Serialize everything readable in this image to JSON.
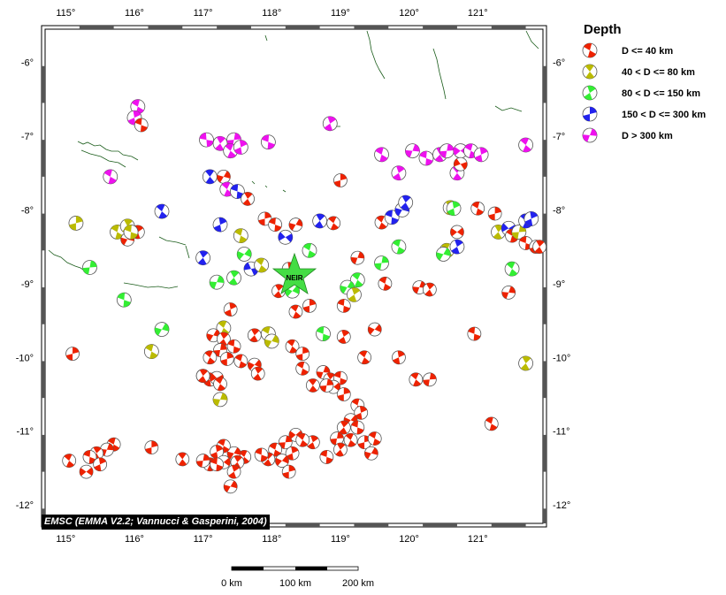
{
  "map": {
    "longitude_labels": [
      "115°",
      "116°",
      "117°",
      "118°",
      "119°",
      "120°",
      "121°"
    ],
    "latitude_labels": [
      "-6°",
      "-7°",
      "-8°",
      "-9°",
      "-10°",
      "-11°",
      "-12°"
    ],
    "station": {
      "label": "NEIR",
      "color": "#44dd44"
    },
    "credit": "EMSC (EMMA V2.2; Vannucci & Gasperini, 2004)"
  },
  "legend": {
    "title": "Depth",
    "items": [
      {
        "label": "D <= 40 km",
        "color": "#ee2200"
      },
      {
        "label": "40 < D <= 80 km",
        "color": "#bbbb00"
      },
      {
        "label": "80 < D <= 150 km",
        "color": "#33ee33"
      },
      {
        "label": "150 < D <= 300 km",
        "color": "#2222ee"
      },
      {
        "label": "D > 300 km",
        "color": "#ee11ee"
      }
    ]
  },
  "scale_bar": {
    "labels": [
      "0 km",
      "100 km",
      "200 km"
    ]
  },
  "events": {
    "depth_classes": [
      "shallow",
      "d40_80",
      "d80_150",
      "d150_300",
      "deep"
    ],
    "colors": {
      "shallow": "#ee2200",
      "d40_80": "#bbbb00",
      "d80_150": "#33ee33",
      "d150_300": "#2222ee",
      "deep": "#ee11ee"
    },
    "list": [
      {
        "lon": 116.05,
        "lat": -6.6,
        "d": "deep",
        "rot": 30
      },
      {
        "lon": 116.0,
        "lat": -6.75,
        "d": "deep",
        "rot": 80
      },
      {
        "lon": 116.1,
        "lat": -6.85,
        "d": "shallow",
        "rot": 20
      },
      {
        "lon": 117.05,
        "lat": -7.05,
        "d": "deep",
        "rot": 10
      },
      {
        "lon": 117.25,
        "lat": -7.1,
        "d": "deep",
        "rot": 60
      },
      {
        "lon": 117.45,
        "lat": -7.05,
        "d": "deep",
        "rot": 100
      },
      {
        "lon": 117.4,
        "lat": -7.2,
        "d": "deep",
        "rot": 40
      },
      {
        "lon": 117.55,
        "lat": -7.15,
        "d": "deep",
        "rot": 80
      },
      {
        "lon": 117.95,
        "lat": -7.08,
        "d": "deep",
        "rot": 20
      },
      {
        "lon": 118.85,
        "lat": -6.83,
        "d": "deep",
        "rot": 70
      },
      {
        "lon": 115.65,
        "lat": -7.55,
        "d": "deep",
        "rot": 30
      },
      {
        "lon": 117.1,
        "lat": -7.55,
        "d": "d150_300",
        "rot": 50
      },
      {
        "lon": 117.3,
        "lat": -7.55,
        "d": "shallow",
        "rot": 120
      },
      {
        "lon": 117.35,
        "lat": -7.72,
        "d": "deep",
        "rot": 40
      },
      {
        "lon": 117.5,
        "lat": -7.75,
        "d": "d150_300",
        "rot": 200
      },
      {
        "lon": 117.65,
        "lat": -7.85,
        "d": "shallow",
        "rot": 60
      },
      {
        "lon": 119.0,
        "lat": -7.6,
        "d": "shallow",
        "rot": 90
      },
      {
        "lon": 119.6,
        "lat": -7.25,
        "d": "deep",
        "rot": 30
      },
      {
        "lon": 119.85,
        "lat": -7.5,
        "d": "deep",
        "rot": 70
      },
      {
        "lon": 120.05,
        "lat": -7.2,
        "d": "deep",
        "rot": 110
      },
      {
        "lon": 120.25,
        "lat": -7.3,
        "d": "deep",
        "rot": 20
      },
      {
        "lon": 120.45,
        "lat": -7.25,
        "d": "deep",
        "rot": 60
      },
      {
        "lon": 120.55,
        "lat": -7.2,
        "d": "deep",
        "rot": 100
      },
      {
        "lon": 120.75,
        "lat": -7.2,
        "d": "deep",
        "rot": 140
      },
      {
        "lon": 120.9,
        "lat": -7.2,
        "d": "deep",
        "rot": 30
      },
      {
        "lon": 121.05,
        "lat": -7.25,
        "d": "deep",
        "rot": 80
      },
      {
        "lon": 120.7,
        "lat": -7.5,
        "d": "deep",
        "rot": 50
      },
      {
        "lon": 120.75,
        "lat": -7.38,
        "d": "shallow",
        "rot": 160
      },
      {
        "lon": 121.7,
        "lat": -7.12,
        "d": "deep",
        "rot": 40
      },
      {
        "lon": 115.15,
        "lat": -8.18,
        "d": "d40_80",
        "rot": 90
      },
      {
        "lon": 115.75,
        "lat": -8.3,
        "d": "d40_80",
        "rot": 30
      },
      {
        "lon": 115.9,
        "lat": -8.22,
        "d": "d40_80",
        "rot": 60
      },
      {
        "lon": 115.9,
        "lat": -8.4,
        "d": "shallow",
        "rot": 120
      },
      {
        "lon": 116.05,
        "lat": -8.3,
        "d": "shallow",
        "rot": 70
      },
      {
        "lon": 115.95,
        "lat": -8.3,
        "d": "d40_80",
        "rot": 200
      },
      {
        "lon": 116.4,
        "lat": -8.02,
        "d": "d150_300",
        "rot": 40
      },
      {
        "lon": 115.35,
        "lat": -8.78,
        "d": "d80_150",
        "rot": 100
      },
      {
        "lon": 115.85,
        "lat": -9.22,
        "d": "d80_150",
        "rot": 20
      },
      {
        "lon": 117.0,
        "lat": -8.65,
        "d": "d150_300",
        "rot": 60
      },
      {
        "lon": 117.2,
        "lat": -8.98,
        "d": "d80_150",
        "rot": 110
      },
      {
        "lon": 117.25,
        "lat": -8.2,
        "d": "d150_300",
        "rot": 80
      },
      {
        "lon": 117.55,
        "lat": -8.35,
        "d": "d40_80",
        "rot": 30
      },
      {
        "lon": 117.6,
        "lat": -8.6,
        "d": "d80_150",
        "rot": 130
      },
      {
        "lon": 117.45,
        "lat": -8.92,
        "d": "d80_150",
        "rot": 60
      },
      {
        "lon": 117.7,
        "lat": -8.8,
        "d": "d150_300",
        "rot": 170
      },
      {
        "lon": 117.85,
        "lat": -8.75,
        "d": "d40_80",
        "rot": 40
      },
      {
        "lon": 117.9,
        "lat": -8.12,
        "d": "shallow",
        "rot": 90
      },
      {
        "lon": 118.05,
        "lat": -8.2,
        "d": "shallow",
        "rot": 20
      },
      {
        "lon": 118.35,
        "lat": -8.2,
        "d": "shallow",
        "rot": 120
      },
      {
        "lon": 118.7,
        "lat": -8.15,
        "d": "d150_300",
        "rot": 60
      },
      {
        "lon": 118.9,
        "lat": -8.18,
        "d": "shallow",
        "rot": 40
      },
      {
        "lon": 118.2,
        "lat": -8.37,
        "d": "d150_300",
        "rot": 150
      },
      {
        "lon": 118.55,
        "lat": -8.55,
        "d": "d80_150",
        "rot": 30
      },
      {
        "lon": 118.25,
        "lat": -8.8,
        "d": "shallow",
        "rot": 80
      },
      {
        "lon": 119.25,
        "lat": -8.65,
        "d": "shallow",
        "rot": 110
      },
      {
        "lon": 119.6,
        "lat": -8.17,
        "d": "shallow",
        "rot": 40
      },
      {
        "lon": 119.75,
        "lat": -8.1,
        "d": "d150_300",
        "rot": 200
      },
      {
        "lon": 119.9,
        "lat": -8.0,
        "d": "d150_300",
        "rot": 120
      },
      {
        "lon": 119.95,
        "lat": -7.9,
        "d": "d150_300",
        "rot": 60
      },
      {
        "lon": 119.85,
        "lat": -8.5,
        "d": "d80_150",
        "rot": 30
      },
      {
        "lon": 119.6,
        "lat": -8.72,
        "d": "d80_150",
        "rot": 100
      },
      {
        "lon": 120.6,
        "lat": -7.97,
        "d": "d40_80",
        "rot": 50
      },
      {
        "lon": 120.65,
        "lat": -7.98,
        "d": "d80_150",
        "rot": 80
      },
      {
        "lon": 120.7,
        "lat": -8.3,
        "d": "shallow",
        "rot": 140
      },
      {
        "lon": 120.55,
        "lat": -8.55,
        "d": "d40_80",
        "rot": 40
      },
      {
        "lon": 120.5,
        "lat": -8.6,
        "d": "d80_150",
        "rot": 120
      },
      {
        "lon": 120.7,
        "lat": -8.5,
        "d": "d150_300",
        "rot": 70
      },
      {
        "lon": 121.0,
        "lat": -7.98,
        "d": "shallow",
        "rot": 30
      },
      {
        "lon": 121.25,
        "lat": -8.05,
        "d": "shallow",
        "rot": 90
      },
      {
        "lon": 121.3,
        "lat": -8.3,
        "d": "d40_80",
        "rot": 60
      },
      {
        "lon": 121.45,
        "lat": -8.25,
        "d": "d150_300",
        "rot": 150
      },
      {
        "lon": 121.5,
        "lat": -8.35,
        "d": "shallow",
        "rot": 30
      },
      {
        "lon": 121.6,
        "lat": -8.3,
        "d": "d40_80",
        "rot": 100
      },
      {
        "lon": 121.7,
        "lat": -8.15,
        "d": "d150_300",
        "rot": 40
      },
      {
        "lon": 121.78,
        "lat": -8.12,
        "d": "d150_300",
        "rot": 80
      },
      {
        "lon": 121.7,
        "lat": -8.45,
        "d": "shallow",
        "rot": 20
      },
      {
        "lon": 121.85,
        "lat": -8.5,
        "d": "shallow",
        "rot": 90
      },
      {
        "lon": 121.9,
        "lat": -8.5,
        "d": "shallow",
        "rot": 60
      },
      {
        "lon": 121.5,
        "lat": -8.8,
        "d": "d80_150",
        "rot": 40
      },
      {
        "lon": 121.45,
        "lat": -9.12,
        "d": "shallow",
        "rot": 110
      },
      {
        "lon": 121.7,
        "lat": -10.08,
        "d": "d40_80",
        "rot": 60
      },
      {
        "lon": 121.2,
        "lat": -10.9,
        "d": "shallow",
        "rot": 30
      },
      {
        "lon": 119.25,
        "lat": -8.95,
        "d": "d80_150",
        "rot": 40
      },
      {
        "lon": 119.1,
        "lat": -9.05,
        "d": "d80_150",
        "rot": 120
      },
      {
        "lon": 119.2,
        "lat": -9.15,
        "d": "d40_80",
        "rot": 70
      },
      {
        "lon": 119.05,
        "lat": -9.3,
        "d": "shallow",
        "rot": 20
      },
      {
        "lon": 118.1,
        "lat": -9.1,
        "d": "shallow",
        "rot": 60
      },
      {
        "lon": 118.3,
        "lat": -9.1,
        "d": "d80_150",
        "rot": 130
      },
      {
        "lon": 118.35,
        "lat": -9.38,
        "d": "shallow",
        "rot": 40
      },
      {
        "lon": 118.55,
        "lat": -9.3,
        "d": "shallow",
        "rot": 90
      },
      {
        "lon": 119.65,
        "lat": -9.0,
        "d": "shallow",
        "rot": 30
      },
      {
        "lon": 120.15,
        "lat": -9.05,
        "d": "shallow",
        "rot": 110
      },
      {
        "lon": 120.3,
        "lat": -9.08,
        "d": "shallow",
        "rot": 60
      },
      {
        "lon": 120.95,
        "lat": -9.68,
        "d": "shallow",
        "rot": 20
      },
      {
        "lon": 117.4,
        "lat": -9.35,
        "d": "shallow",
        "rot": 80
      },
      {
        "lon": 117.3,
        "lat": -9.6,
        "d": "d40_80",
        "rot": 40
      },
      {
        "lon": 117.15,
        "lat": -9.7,
        "d": "shallow",
        "rot": 120
      },
      {
        "lon": 117.3,
        "lat": -9.75,
        "d": "shallow",
        "rot": 60
      },
      {
        "lon": 117.45,
        "lat": -9.85,
        "d": "shallow",
        "rot": 20
      },
      {
        "lon": 117.25,
        "lat": -9.9,
        "d": "shallow",
        "rot": 100
      },
      {
        "lon": 117.1,
        "lat": -10.0,
        "d": "shallow",
        "rot": 40
      },
      {
        "lon": 117.35,
        "lat": -10.02,
        "d": "shallow",
        "rot": 90
      },
      {
        "lon": 117.55,
        "lat": -10.05,
        "d": "shallow",
        "rot": 30
      },
      {
        "lon": 117.75,
        "lat": -10.1,
        "d": "shallow",
        "rot": 130
      },
      {
        "lon": 117.8,
        "lat": -10.22,
        "d": "shallow",
        "rot": 60
      },
      {
        "lon": 117.0,
        "lat": -10.25,
        "d": "shallow",
        "rot": 20
      },
      {
        "lon": 117.1,
        "lat": -10.3,
        "d": "shallow",
        "rot": 80
      },
      {
        "lon": 117.2,
        "lat": -10.28,
        "d": "shallow",
        "rot": 150
      },
      {
        "lon": 117.25,
        "lat": -10.36,
        "d": "shallow",
        "rot": 40
      },
      {
        "lon": 117.25,
        "lat": -10.57,
        "d": "d40_80",
        "rot": 110
      },
      {
        "lon": 117.75,
        "lat": -9.7,
        "d": "shallow",
        "rot": 60
      },
      {
        "lon": 117.95,
        "lat": -9.68,
        "d": "d40_80",
        "rot": 30
      },
      {
        "lon": 118.0,
        "lat": -9.78,
        "d": "d40_80",
        "rot": 120
      },
      {
        "lon": 118.3,
        "lat": -9.85,
        "d": "shallow",
        "rot": 40
      },
      {
        "lon": 118.45,
        "lat": -9.95,
        "d": "shallow",
        "rot": 90
      },
      {
        "lon": 118.75,
        "lat": -9.68,
        "d": "d80_150",
        "rot": 20
      },
      {
        "lon": 119.05,
        "lat": -9.72,
        "d": "shallow",
        "rot": 70
      },
      {
        "lon": 119.5,
        "lat": -9.62,
        "d": "shallow",
        "rot": 130
      },
      {
        "lon": 119.35,
        "lat": -10.0,
        "d": "shallow",
        "rot": 40
      },
      {
        "lon": 119.85,
        "lat": -10.0,
        "d": "shallow",
        "rot": 80
      },
      {
        "lon": 118.45,
        "lat": -10.15,
        "d": "shallow",
        "rot": 30
      },
      {
        "lon": 118.75,
        "lat": -10.2,
        "d": "shallow",
        "rot": 110
      },
      {
        "lon": 118.85,
        "lat": -10.3,
        "d": "shallow",
        "rot": 60
      },
      {
        "lon": 119.0,
        "lat": -10.28,
        "d": "shallow",
        "rot": 20
      },
      {
        "lon": 118.9,
        "lat": -10.4,
        "d": "shallow",
        "rot": 140
      },
      {
        "lon": 118.6,
        "lat": -10.38,
        "d": "shallow",
        "rot": 50
      },
      {
        "lon": 119.05,
        "lat": -10.5,
        "d": "shallow",
        "rot": 90
      },
      {
        "lon": 120.1,
        "lat": -10.3,
        "d": "shallow",
        "rot": 40
      },
      {
        "lon": 120.3,
        "lat": -10.3,
        "d": "shallow",
        "rot": 100
      },
      {
        "lon": 119.25,
        "lat": -10.65,
        "d": "shallow",
        "rot": 30
      },
      {
        "lon": 119.3,
        "lat": -10.75,
        "d": "shallow",
        "rot": 80
      },
      {
        "lon": 119.15,
        "lat": -10.85,
        "d": "shallow",
        "rot": 130
      },
      {
        "lon": 119.05,
        "lat": -10.95,
        "d": "shallow",
        "rot": 60
      },
      {
        "lon": 119.25,
        "lat": -10.95,
        "d": "shallow",
        "rot": 20
      },
      {
        "lon": 118.95,
        "lat": -11.1,
        "d": "shallow",
        "rot": 100
      },
      {
        "lon": 119.15,
        "lat": -11.12,
        "d": "shallow",
        "rot": 40
      },
      {
        "lon": 119.35,
        "lat": -11.15,
        "d": "shallow",
        "rot": 90
      },
      {
        "lon": 119.5,
        "lat": -11.1,
        "d": "shallow",
        "rot": 30
      },
      {
        "lon": 119.45,
        "lat": -11.3,
        "d": "shallow",
        "rot": 120
      },
      {
        "lon": 119.0,
        "lat": -11.25,
        "d": "shallow",
        "rot": 60
      },
      {
        "lon": 118.8,
        "lat": -11.35,
        "d": "shallow",
        "rot": 20
      },
      {
        "lon": 118.6,
        "lat": -11.15,
        "d": "shallow",
        "rot": 70
      },
      {
        "lon": 118.35,
        "lat": -11.05,
        "d": "shallow",
        "rot": 140
      },
      {
        "lon": 118.45,
        "lat": -11.12,
        "d": "shallow",
        "rot": 40
      },
      {
        "lon": 118.2,
        "lat": -11.15,
        "d": "shallow",
        "rot": 100
      },
      {
        "lon": 118.05,
        "lat": -11.25,
        "d": "shallow",
        "rot": 30
      },
      {
        "lon": 118.3,
        "lat": -11.3,
        "d": "shallow",
        "rot": 80
      },
      {
        "lon": 118.15,
        "lat": -11.4,
        "d": "shallow",
        "rot": 130
      },
      {
        "lon": 117.95,
        "lat": -11.38,
        "d": "shallow",
        "rot": 60
      },
      {
        "lon": 117.85,
        "lat": -11.32,
        "d": "shallow",
        "rot": 20
      },
      {
        "lon": 118.25,
        "lat": -11.55,
        "d": "shallow",
        "rot": 90
      },
      {
        "lon": 117.6,
        "lat": -11.35,
        "d": "shallow",
        "rot": 40
      },
      {
        "lon": 117.45,
        "lat": -11.3,
        "d": "shallow",
        "rot": 120
      },
      {
        "lon": 117.5,
        "lat": -11.42,
        "d": "shallow",
        "rot": 60
      },
      {
        "lon": 117.3,
        "lat": -11.2,
        "d": "shallow",
        "rot": 30
      },
      {
        "lon": 117.2,
        "lat": -11.28,
        "d": "shallow",
        "rot": 80
      },
      {
        "lon": 117.3,
        "lat": -11.42,
        "d": "shallow",
        "rot": 140
      },
      {
        "lon": 117.1,
        "lat": -11.45,
        "d": "shallow",
        "rot": 40
      },
      {
        "lon": 117.0,
        "lat": -11.4,
        "d": "shallow",
        "rot": 100
      },
      {
        "lon": 117.2,
        "lat": -11.45,
        "d": "shallow",
        "rot": 20
      },
      {
        "lon": 117.45,
        "lat": -11.55,
        "d": "shallow",
        "rot": 70
      },
      {
        "lon": 117.4,
        "lat": -11.75,
        "d": "shallow",
        "rot": 120
      },
      {
        "lon": 116.7,
        "lat": -11.38,
        "d": "shallow",
        "rot": 50
      },
      {
        "lon": 116.25,
        "lat": -11.22,
        "d": "shallow",
        "rot": 90
      },
      {
        "lon": 115.7,
        "lat": -11.18,
        "d": "shallow",
        "rot": 30
      },
      {
        "lon": 115.6,
        "lat": -11.25,
        "d": "shallow",
        "rot": 110
      },
      {
        "lon": 115.45,
        "lat": -11.3,
        "d": "shallow",
        "rot": 60
      },
      {
        "lon": 115.35,
        "lat": -11.35,
        "d": "shallow",
        "rot": 20
      },
      {
        "lon": 115.5,
        "lat": -11.45,
        "d": "shallow",
        "rot": 80
      },
      {
        "lon": 115.3,
        "lat": -11.55,
        "d": "shallow",
        "rot": 140
      },
      {
        "lon": 115.05,
        "lat": -11.4,
        "d": "shallow",
        "rot": 40
      },
      {
        "lon": 115.1,
        "lat": -9.95,
        "d": "shallow",
        "rot": 90
      },
      {
        "lon": 116.25,
        "lat": -9.92,
        "d": "d40_80",
        "rot": 30
      },
      {
        "lon": 116.4,
        "lat": -9.62,
        "d": "d80_150",
        "rot": 120
      },
      {
        "lon": 117.0,
        "lat": -10.25,
        "d": "shallow",
        "rot": 60
      },
      {
        "lon": 118.8,
        "lat": -10.38,
        "d": "shallow",
        "rot": 100
      }
    ]
  }
}
